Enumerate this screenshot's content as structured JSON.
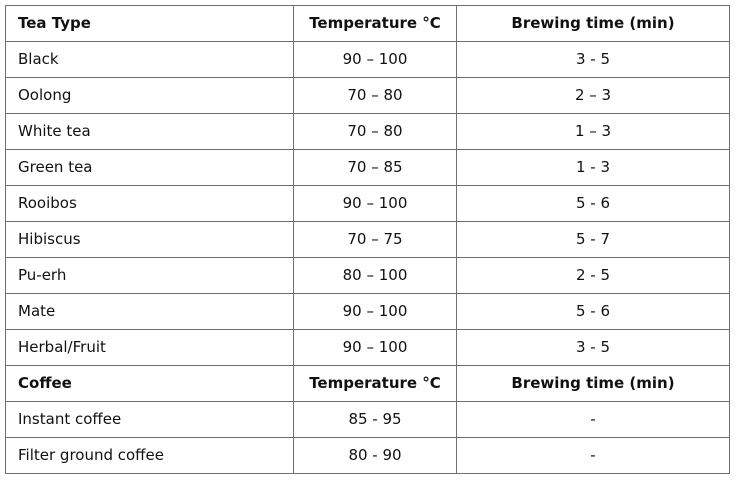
{
  "tea_table": {
    "header": {
      "type": "Tea Type",
      "temperature": "Temperature °C",
      "brewing_time": "Brewing time (min)"
    },
    "rows": [
      {
        "name": "Black",
        "temperature": "90 – 100",
        "brewing_time": "3 - 5"
      },
      {
        "name": "Oolong",
        "temperature": "70 – 80",
        "brewing_time": "2 – 3"
      },
      {
        "name": "White tea",
        "temperature": "70 – 80",
        "brewing_time": "1 – 3"
      },
      {
        "name": "Green tea",
        "temperature": "70 – 85",
        "brewing_time": "1 - 3"
      },
      {
        "name": "Rooibos",
        "temperature": "90 – 100",
        "brewing_time": "5 - 6"
      },
      {
        "name": "Hibiscus",
        "temperature": "70 – 75",
        "brewing_time": "5 - 7"
      },
      {
        "name": "Pu-erh",
        "temperature": "80 – 100",
        "brewing_time": "2 - 5"
      },
      {
        "name": "Mate",
        "temperature": "90 – 100",
        "brewing_time": "5 - 6"
      },
      {
        "name": "Herbal/Fruit",
        "temperature": "90 – 100",
        "brewing_time": "3 - 5"
      }
    ]
  },
  "coffee_table": {
    "header": {
      "type": "Coffee",
      "temperature": "Temperature °C",
      "brewing_time": "Brewing time (min)"
    },
    "rows": [
      {
        "name": "Instant coffee",
        "temperature": "85 - 95",
        "brewing_time": "-"
      },
      {
        "name": "Filter ground coffee",
        "temperature": "80 - 90",
        "brewing_time": "-"
      }
    ]
  }
}
